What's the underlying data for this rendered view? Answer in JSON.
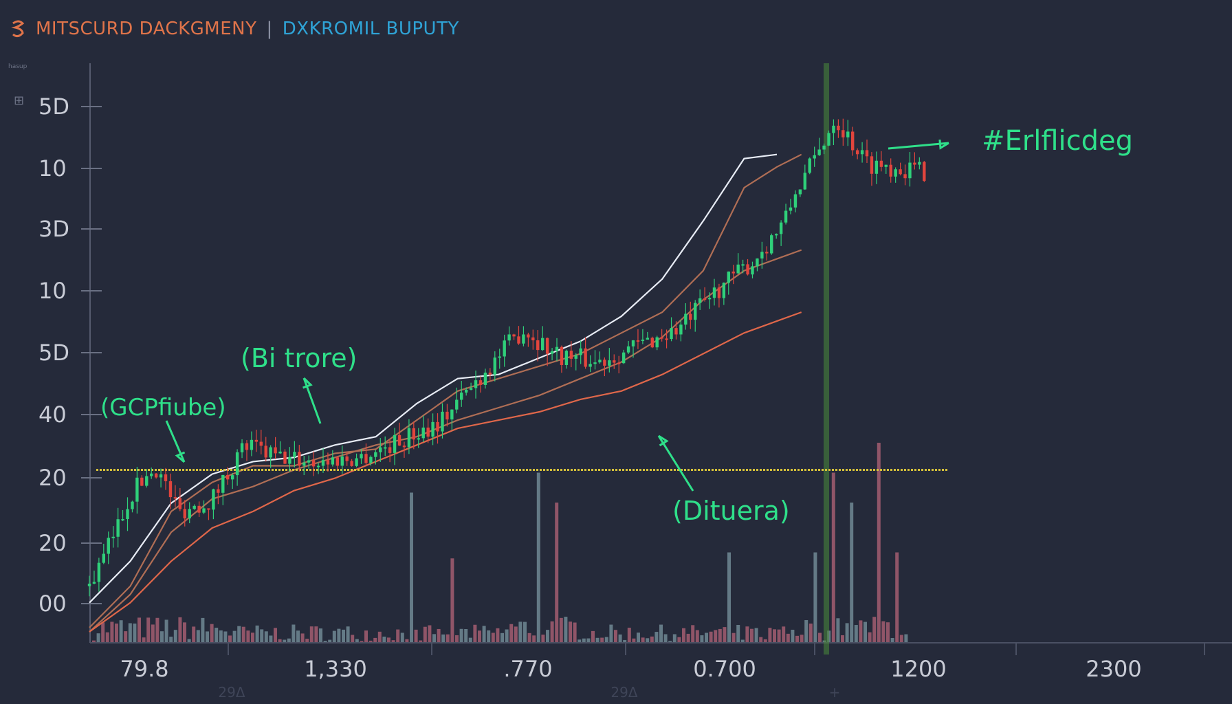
{
  "header": {
    "brand_left": "MITSCURD DACKGMENY",
    "separator": "|",
    "brand_right": "DXKROMIL BUPUTY",
    "logo_icon": "chart-logo-icon"
  },
  "side": {
    "tiny_label": "hasup",
    "glyph": "⊞"
  },
  "colors": {
    "background": "#252a3a",
    "up": "#2fd07a",
    "down": "#e2453d",
    "ma_white": "#e8ecf5",
    "ma_brown": "#b06e55",
    "ma_red": "#e0674a",
    "support": "#d6c13a",
    "annotation": "#2fe08a",
    "volume_down": "#b46478",
    "volume_up": "#7a96a0",
    "highlight": "#4a8a3a"
  },
  "chart_data": {
    "type": "candlestick",
    "y_tick_labels": [
      "5D",
      "10",
      "3D",
      "10",
      "5D",
      "40",
      "20",
      "20",
      "00"
    ],
    "x_tick_labels": [
      "79.8",
      "1,330",
      ".770",
      "0.700",
      "1200",
      "2300"
    ],
    "x_minor_labels": [
      "29Δ",
      "29Δ",
      "+"
    ],
    "support_level": 40,
    "annotations": [
      {
        "text": "(GCPfiube)"
      },
      {
        "text": "(Bi trore)"
      },
      {
        "text": "(Dituera)"
      },
      {
        "text": "#Erlflicdeg"
      }
    ],
    "grid": false,
    "legend": "none",
    "series": [
      {
        "type": "candles",
        "path_anchors": [
          [
            0,
            12
          ],
          [
            4,
            20
          ],
          [
            10,
            34
          ],
          [
            16,
            41
          ],
          [
            22,
            30
          ],
          [
            30,
            33
          ],
          [
            38,
            46
          ],
          [
            46,
            43
          ],
          [
            56,
            42
          ],
          [
            66,
            43
          ],
          [
            76,
            47
          ],
          [
            86,
            52
          ],
          [
            96,
            63
          ],
          [
            106,
            74
          ],
          [
            114,
            68
          ],
          [
            124,
            66
          ],
          [
            134,
            70
          ],
          [
            144,
            74
          ],
          [
            154,
            84
          ],
          [
            162,
            90
          ],
          [
            170,
            100
          ],
          [
            173,
            108
          ],
          [
            178,
            116
          ],
          [
            182,
            125
          ],
          [
            190,
            114
          ],
          [
            204,
            112
          ]
        ]
      },
      {
        "type": "ma",
        "name": "",
        "values": [
          [
            0,
            2
          ],
          [
            10,
            12
          ],
          [
            20,
            30
          ],
          [
            30,
            37
          ],
          [
            40,
            41
          ],
          [
            50,
            41
          ],
          [
            60,
            44
          ],
          [
            70,
            45
          ],
          [
            80,
            52
          ],
          [
            90,
            59
          ],
          [
            100,
            62
          ],
          [
            110,
            65
          ],
          [
            120,
            68
          ],
          [
            130,
            73
          ],
          [
            140,
            78
          ],
          [
            150,
            88
          ],
          [
            160,
            108
          ],
          [
            168,
            113
          ],
          [
            174,
            116
          ]
        ]
      },
      {
        "type": "ma",
        "name": "",
        "values": [
          [
            0,
            8
          ],
          [
            10,
            18
          ],
          [
            20,
            32
          ],
          [
            30,
            39
          ],
          [
            40,
            42
          ],
          [
            50,
            43
          ],
          [
            60,
            46
          ],
          [
            70,
            48
          ],
          [
            80,
            56
          ],
          [
            90,
            62
          ],
          [
            100,
            63
          ],
          [
            110,
            67
          ],
          [
            120,
            71
          ],
          [
            130,
            77
          ],
          [
            140,
            86
          ],
          [
            150,
            100
          ],
          [
            160,
            115
          ],
          [
            168,
            116
          ]
        ]
      },
      {
        "type": "ma",
        "name": "",
        "values": [
          [
            0,
            1
          ],
          [
            10,
            10
          ],
          [
            20,
            25
          ],
          [
            30,
            33
          ],
          [
            40,
            36
          ],
          [
            50,
            40
          ],
          [
            60,
            43
          ],
          [
            70,
            46
          ],
          [
            80,
            48
          ],
          [
            90,
            52
          ],
          [
            100,
            55
          ],
          [
            110,
            58
          ],
          [
            120,
            62
          ],
          [
            130,
            66
          ],
          [
            140,
            72
          ],
          [
            150,
            81
          ],
          [
            160,
            88
          ],
          [
            174,
            93
          ]
        ]
      },
      {
        "type": "ma",
        "name": "",
        "values": [
          [
            0,
            1
          ],
          [
            10,
            8
          ],
          [
            20,
            18
          ],
          [
            30,
            26
          ],
          [
            40,
            30
          ],
          [
            50,
            35
          ],
          [
            60,
            38
          ],
          [
            70,
            42
          ],
          [
            80,
            46
          ],
          [
            90,
            50
          ],
          [
            100,
            52
          ],
          [
            110,
            54
          ],
          [
            120,
            57
          ],
          [
            130,
            59
          ],
          [
            140,
            63
          ],
          [
            150,
            68
          ],
          [
            160,
            73
          ],
          [
            174,
            78
          ]
        ]
      }
    ],
    "volume": {
      "spikes": [
        [
          70,
          75
        ],
        [
          79,
          42
        ],
        [
          98,
          85
        ],
        [
          102,
          70
        ],
        [
          140,
          45
        ],
        [
          159,
          45
        ],
        [
          163,
          85
        ],
        [
          167,
          70
        ],
        [
          173,
          100
        ],
        [
          177,
          45
        ]
      ],
      "base_range": [
        2,
        30
      ]
    }
  }
}
